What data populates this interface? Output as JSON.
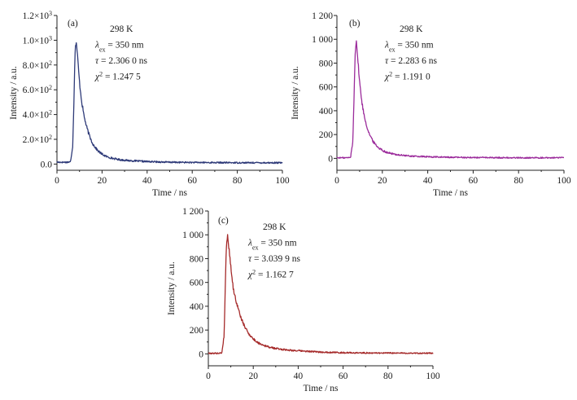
{
  "chart_data": [
    {
      "type": "line",
      "panel_label": "(a)",
      "xlabel": "Time / ns",
      "ylabel": "Intensity / a.u.",
      "xlim": [
        0,
        100
      ],
      "ylim": [
        -50,
        1200
      ],
      "x_ticks": [
        0,
        20,
        40,
        60,
        80,
        100
      ],
      "x_tick_labels": [
        "0",
        "20",
        "40",
        "60",
        "80",
        "100"
      ],
      "y_ticks": [
        0,
        200,
        400,
        600,
        800,
        1000,
        1200
      ],
      "y_tick_labels": [
        {
          "m": "0.0",
          "e": ""
        },
        {
          "m": "2.0×10",
          "e": "2"
        },
        {
          "m": "4.0×10",
          "e": "2"
        },
        {
          "m": "6.0×10",
          "e": "2"
        },
        {
          "m": "8.0×10",
          "e": "2"
        },
        {
          "m": "1.0×10",
          "e": "3"
        },
        {
          "m": "1.2×10",
          "e": "3"
        }
      ],
      "color": "#2e3a78",
      "annotation": {
        "temperature": "298 K",
        "lambda_symbol": "λ",
        "lambda_sub": "ex",
        "lambda_value": " = 350 nm",
        "tau_symbol": "τ",
        "tau_value": " = 2.306 0 ns",
        "chi_symbol": "χ",
        "chi_sup": "2",
        "chi_value": " = 1.247 5"
      },
      "series": [
        {
          "x": [
            0,
            4,
            6,
            7,
            7.5,
            8,
            8.5,
            9,
            10,
            11,
            12,
            13,
            14,
            15,
            16,
            18,
            20,
            22,
            25,
            28,
            32,
            36,
            40,
            50,
            60,
            70,
            80,
            90,
            100
          ],
          "y": [
            15,
            15,
            17,
            150,
            500,
            900,
            1000,
            900,
            660,
            500,
            390,
            310,
            250,
            200,
            160,
            110,
            80,
            60,
            45,
            35,
            28,
            24,
            20,
            15,
            13,
            12,
            11,
            11,
            10
          ]
        }
      ]
    },
    {
      "type": "line",
      "panel_label": "(b)",
      "xlabel": "Time / ns",
      "ylabel": "Intensity / a.u.",
      "xlim": [
        0,
        100
      ],
      "ylim": [
        -100,
        1200
      ],
      "x_ticks": [
        0,
        20,
        40,
        60,
        80,
        100
      ],
      "x_tick_labels": [
        "0",
        "20",
        "40",
        "60",
        "80",
        "100"
      ],
      "y_ticks": [
        0,
        200,
        400,
        600,
        800,
        1000,
        1200
      ],
      "y_tick_labels": [
        "0",
        "200",
        "400",
        "600",
        "800",
        "1 000",
        "1 200"
      ],
      "color": "#9b2b9b",
      "annotation": {
        "temperature": "298 K",
        "lambda_symbol": "λ",
        "lambda_sub": "ex",
        "lambda_value": " = 350 nm",
        "tau_symbol": "τ",
        "tau_value": " = 2.283 6 ns",
        "chi_symbol": "χ",
        "chi_sup": "2",
        "chi_value": " = 1.191 0"
      },
      "series": [
        {
          "x": [
            0,
            4,
            6,
            7,
            7.5,
            8,
            8.5,
            9,
            10,
            11,
            12,
            13,
            14,
            15,
            16,
            18,
            20,
            22,
            25,
            28,
            32,
            36,
            40,
            50,
            60,
            70,
            80,
            90,
            100
          ],
          "y": [
            5,
            5,
            7,
            140,
            480,
            880,
            1000,
            880,
            640,
            470,
            360,
            280,
            220,
            175,
            140,
            95,
            68,
            50,
            36,
            27,
            20,
            16,
            13,
            9,
            7,
            6,
            5,
            5,
            5
          ]
        }
      ]
    },
    {
      "type": "line",
      "panel_label": "(c)",
      "xlabel": "Time / ns",
      "ylabel": "Intensity / a.u.",
      "xlim": [
        0,
        100
      ],
      "ylim": [
        -100,
        1200
      ],
      "x_ticks": [
        0,
        20,
        40,
        60,
        80,
        100
      ],
      "x_tick_labels": [
        "0",
        "20",
        "40",
        "60",
        "80",
        "100"
      ],
      "y_ticks": [
        0,
        200,
        400,
        600,
        800,
        1000,
        1200
      ],
      "y_tick_labels": [
        "0",
        "200",
        "400",
        "600",
        "800",
        "1 000",
        "1 200"
      ],
      "color": "#a52a2a",
      "annotation": {
        "temperature": "298 K",
        "lambda_symbol": "λ",
        "lambda_sub": "ex",
        "lambda_value": " = 350 nm",
        "tau_symbol": "τ",
        "tau_value": " = 3.039 9 ns",
        "chi_symbol": "χ",
        "chi_sup": "2",
        "chi_value": " = 1.162 7"
      },
      "series": [
        {
          "x": [
            0,
            4,
            6,
            7,
            7.5,
            8,
            8.5,
            9,
            10,
            11,
            12,
            13,
            14,
            15,
            16,
            18,
            20,
            22,
            25,
            28,
            32,
            36,
            40,
            50,
            60,
            70,
            80,
            90,
            100
          ],
          "y": [
            5,
            5,
            8,
            150,
            520,
            900,
            1000,
            920,
            740,
            560,
            470,
            400,
            335,
            280,
            235,
            170,
            125,
            95,
            70,
            52,
            40,
            32,
            26,
            15,
            10,
            8,
            7,
            6,
            5
          ]
        }
      ]
    }
  ]
}
